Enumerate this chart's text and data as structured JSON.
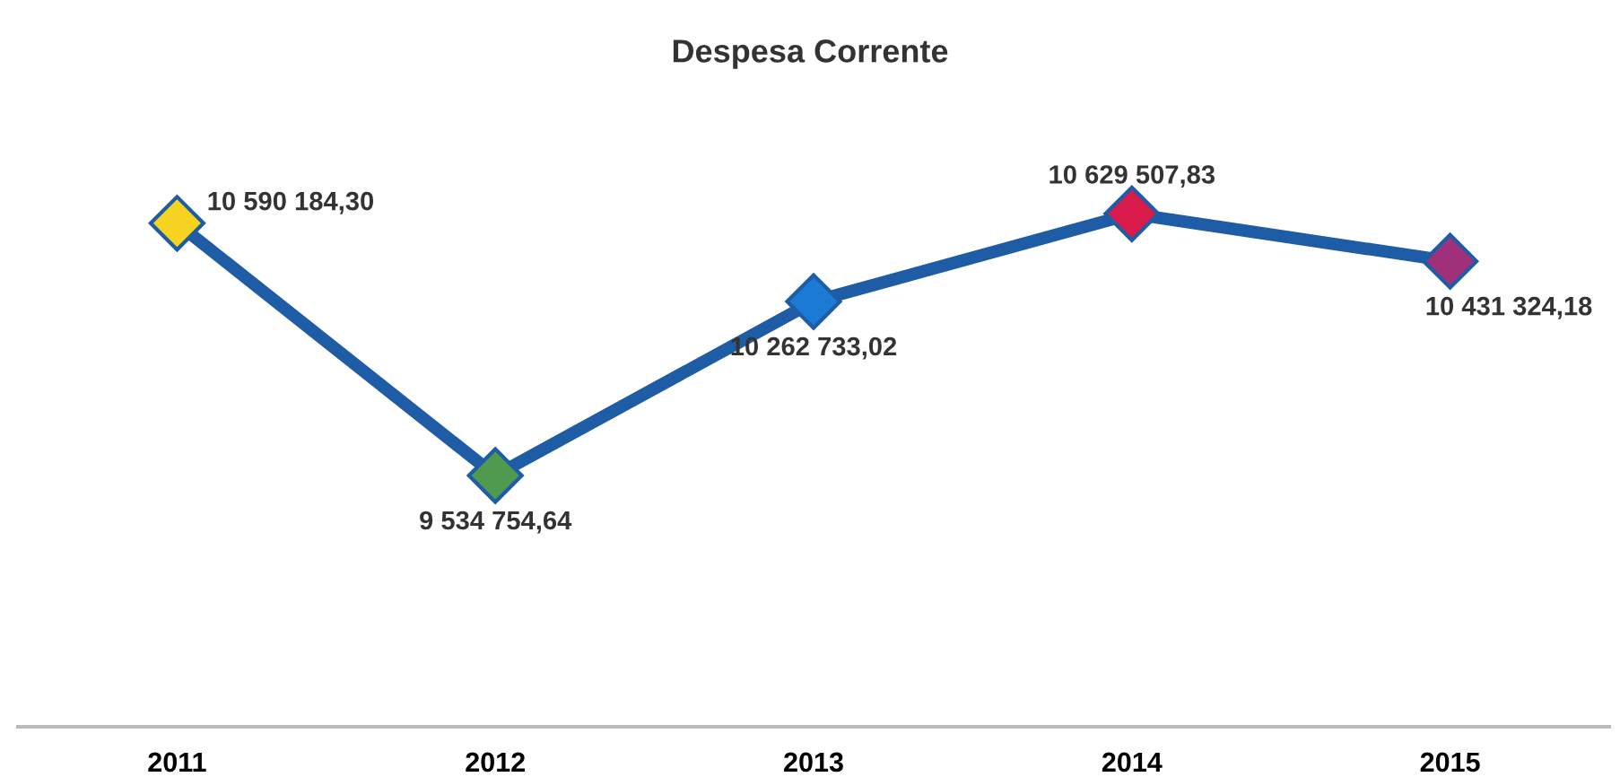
{
  "chart_data": {
    "type": "line",
    "title": "Despesa Corrente",
    "categories": [
      "2011",
      "2012",
      "2013",
      "2014",
      "2015"
    ],
    "series": [
      {
        "color": "#1f5ca6",
        "values": [
          10590184.3,
          9534754.64,
          10262733.02,
          10629507.83,
          10431324.18
        ],
        "colors": [
          "#f5d320",
          "#4f9a4f",
          "#1a7ad4",
          "#d81b4a",
          "#a0307a"
        ],
        "value_labels": [
          "10 590 184,30",
          "9 534 754,64",
          "10 262 733,02",
          "10 629 507,83",
          "10 431 324,18"
        ]
      }
    ],
    "tick_labels": "x",
    "marker": "diamond",
    "line_style": "solid"
  }
}
